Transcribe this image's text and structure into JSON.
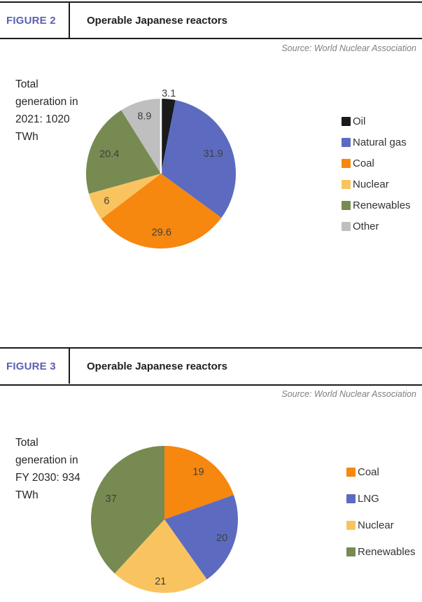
{
  "figures": [
    {
      "tag": "FIGURE 2",
      "title": "Operable Japanese reactors",
      "source": "Source: World Nuclear Association",
      "total_label": "Total\ngeneration in\n2021: 1020\nTWh"
    },
    {
      "tag": "FIGURE 3",
      "title": "Operable Japanese reactors",
      "source": "Source: World Nuclear Association",
      "total_label": "Total\ngeneration in\nFY 2030: 934\nTWh"
    }
  ],
  "chart_data": [
    {
      "type": "pie",
      "title": "Total generation in 2021: 1020 TWh",
      "labels": [
        "Oil",
        "Natural gas",
        "Coal",
        "Nuclear",
        "Renewables",
        "Other"
      ],
      "values": [
        3.1,
        31.9,
        29.6,
        6,
        20.4,
        8.9
      ],
      "data_labels": [
        "3.1",
        "31.9",
        "29.6",
        "6",
        "20.4",
        "8.9"
      ],
      "colors": [
        "#1a1a1a",
        "#5c6bc0",
        "#f6870f",
        "#f9c45f",
        "#778a51",
        "#bfbfbf"
      ],
      "label_radius": [
        1.08,
        0.75,
        0.78,
        0.81,
        0.74,
        0.8
      ],
      "start_angle_deg": 0,
      "gap_at_start": true,
      "legend_position": "right"
    },
    {
      "type": "pie",
      "title": "Total generation in FY 2030: 934 TWh",
      "labels": [
        "Coal",
        "LNG",
        "Nuclear",
        "Renewables"
      ],
      "values": [
        19,
        20,
        21,
        37
      ],
      "data_labels": [
        "19",
        "20",
        "21",
        "37"
      ],
      "colors": [
        "#f6870f",
        "#5c6bc0",
        "#f9c45f",
        "#778a51"
      ],
      "label_radius": [
        0.8,
        0.82,
        0.84,
        0.78
      ],
      "start_angle_deg": 0,
      "gap_at_start": false,
      "legend_position": "right"
    }
  ]
}
